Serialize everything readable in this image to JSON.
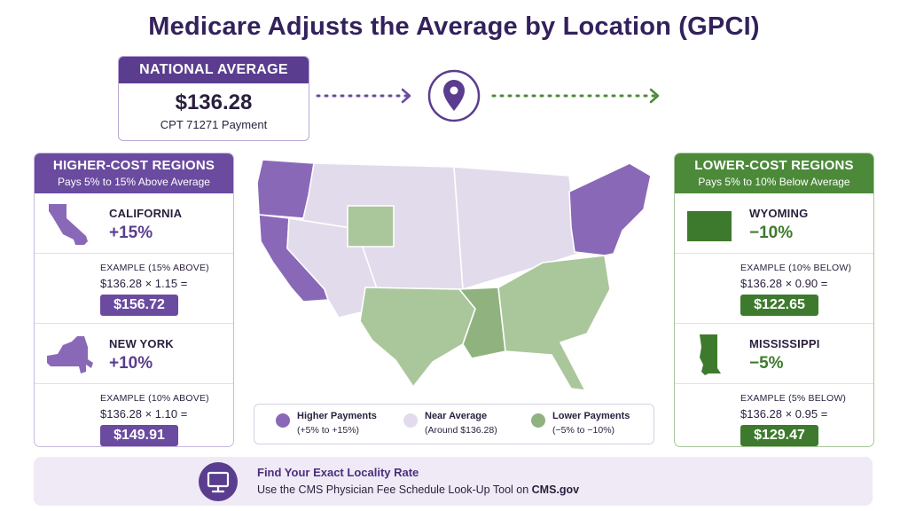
{
  "title": "Medicare Adjusts the Average by Location (GPCI)",
  "national": {
    "heading": "NATIONAL AVERAGE",
    "value": "$136.28",
    "subtitle": "CPT 71271 Payment"
  },
  "higher": {
    "heading": "HIGHER-COST REGIONS",
    "subheading": "Pays 5% to 15% Above Average",
    "states": [
      {
        "name": "CALIFORNIA",
        "pct": "+15%",
        "example_label": "EXAMPLE (15% ABOVE)",
        "formula": "$136.28 × 1.15 =",
        "result": "$156.72"
      },
      {
        "name": "NEW YORK",
        "pct": "+10%",
        "example_label": "EXAMPLE (10% ABOVE)",
        "formula": "$136.28 × 1.10 =",
        "result": "$149.91"
      }
    ]
  },
  "lower": {
    "heading": "LOWER-COST REGIONS",
    "subheading": "Pays 5% to 10% Below Average",
    "states": [
      {
        "name": "WYOMING",
        "pct": "−10%",
        "example_label": "EXAMPLE (10% BELOW)",
        "formula": "$136.28 × 0.90 =",
        "result": "$122.65"
      },
      {
        "name": "MISSISSIPPI",
        "pct": "−5%",
        "example_label": "EXAMPLE (5% BELOW)",
        "formula": "$136.28 × 0.95 =",
        "result": "$129.47"
      }
    ]
  },
  "legend": [
    {
      "label": "Higher Payments",
      "range": "(+5% to +15%)",
      "color": "#8a68b8"
    },
    {
      "label": "Near Average",
      "range": "(Around $136.28)",
      "color": "#e2dbeb"
    },
    {
      "label": "Lower Payments",
      "range": "(−5% to −10%)",
      "color": "#8fb27f"
    }
  ],
  "colors": {
    "higher": "#8a68b8",
    "near": "#e2dbeb",
    "lower": "#aac79c",
    "lower_dark": "#8fb27f",
    "brand_purple": "#5a3d8f",
    "brand_green": "#4c8a3a"
  },
  "footer": {
    "icon": "computer-monitor-icon",
    "title": "Find Your Exact Locality Rate",
    "text": "Use the CMS Physician Fee Schedule Look-Up Tool on ",
    "link": "CMS.gov"
  }
}
